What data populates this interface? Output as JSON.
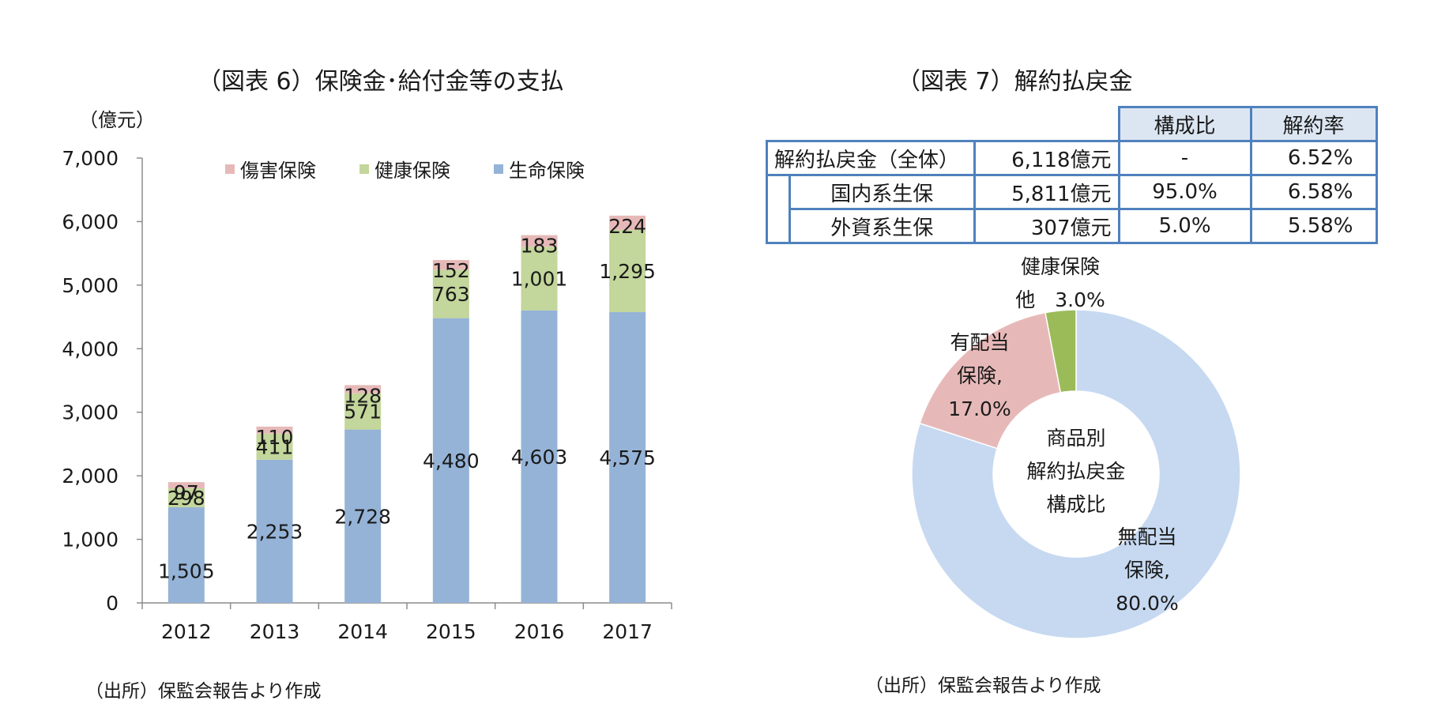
{
  "left": {
    "title": "（図表 6）保険金･給付金等の支払",
    "source": "（出所）保監会報告より作成"
  },
  "right": {
    "title": "（図表 7）解約払戻金",
    "source": "（出所）保監会報告より作成",
    "table": {
      "headers": [
        "構成比",
        "解約率"
      ],
      "rows": [
        {
          "label": "解約払戻金（全体）",
          "amount": "6,118億元",
          "share": "-",
          "rate": "6.52%"
        },
        {
          "label": "国内系生保",
          "amount": "5,811億元",
          "share": "95.0%",
          "rate": "6.58%"
        },
        {
          "label": "外資系生保",
          "amount": "307億元",
          "share": "5.0%",
          "rate": "5.58%"
        }
      ]
    }
  },
  "chart_data": [
    {
      "type": "bar",
      "stacked": true,
      "ylabel": "（億元）",
      "ylim": [
        0,
        7000
      ],
      "yticks": [
        "0",
        "1,000",
        "2,000",
        "3,000",
        "4,000",
        "5,000",
        "6,000",
        "7,000"
      ],
      "categories": [
        "2012",
        "2013",
        "2014",
        "2015",
        "2016",
        "2017"
      ],
      "legend_position": "top",
      "series": [
        {
          "name": "生命保険",
          "color": "#95b3d7",
          "values": [
            1505,
            2253,
            2728,
            4480,
            4603,
            4575
          ],
          "labels": [
            "1,505",
            "2,253",
            "2,728",
            "4,480",
            "4,603",
            "4,575"
          ]
        },
        {
          "name": "健康保険",
          "color": "#c3d69b",
          "values": [
            298,
            411,
            571,
            763,
            1001,
            1295
          ],
          "labels": [
            "298",
            "411",
            "571",
            "763",
            "1,001",
            "1,295"
          ]
        },
        {
          "name": "傷害保険",
          "color": "#e6b9b8",
          "values": [
            97,
            110,
            128,
            152,
            183,
            224
          ],
          "labels": [
            "97",
            "110",
            "128",
            "152",
            "183",
            "224"
          ]
        }
      ],
      "legend_order": [
        "傷害保険",
        "健康保険",
        "生命保険"
      ],
      "grid": false
    },
    {
      "type": "pie",
      "donut": true,
      "center_label": [
        "商品別",
        "解約払戻金",
        "構成比"
      ],
      "slices": [
        {
          "name": "無配当保険",
          "value": 80.0,
          "color": "#c6d9f1",
          "label": [
            "無配当",
            "保険,",
            "80.0%"
          ]
        },
        {
          "name": "有配当保険",
          "value": 17.0,
          "color": "#e6b9b8",
          "label": [
            "有配当",
            "保険,",
            "17.0%"
          ]
        },
        {
          "name": "健康保険他",
          "value": 3.0,
          "color": "#9bbb59",
          "label": [
            "健康保険",
            "他　3.0%"
          ]
        }
      ]
    }
  ]
}
